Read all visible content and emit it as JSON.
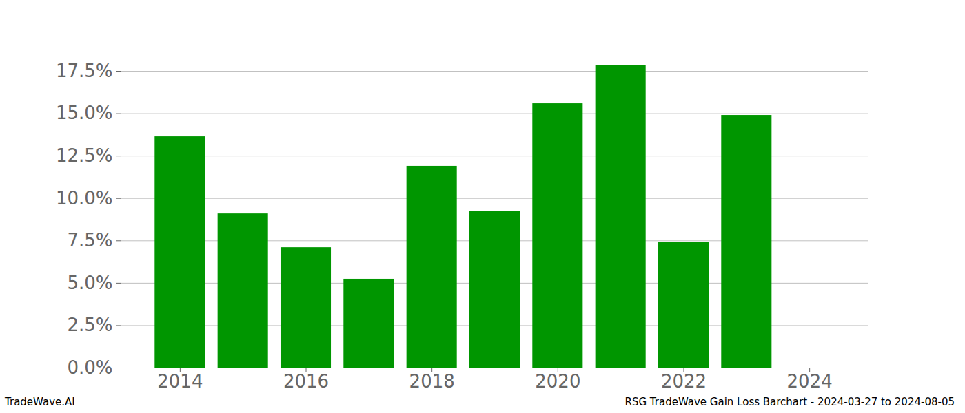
{
  "chart_data": {
    "type": "bar",
    "footer_left": "TradeWave.AI",
    "footer_right": "RSG TradeWave Gain Loss Barchart - 2024-03-27 to 2024-08-05",
    "x": [
      2014,
      2015,
      2016,
      2017,
      2018,
      2019,
      2020,
      2021,
      2022,
      2023,
      2024
    ],
    "values": [
      13.64,
      9.09,
      7.1,
      5.24,
      11.9,
      9.22,
      15.59,
      17.86,
      7.39,
      14.9,
      0
    ],
    "color": "#009600",
    "xlim": [
      2013.06,
      2024.94
    ],
    "xticks": [
      2014,
      2016,
      2018,
      2020,
      2022,
      2024
    ],
    "ylim": [
      0,
      18.76
    ],
    "yticks": [
      {
        "value": 0,
        "label": "0.0%"
      },
      {
        "value": 2.5,
        "label": "2.5%"
      },
      {
        "value": 5,
        "label": "5.0%"
      },
      {
        "value": 7.5,
        "label": "7.5%"
      },
      {
        "value": 10,
        "label": "10.0%"
      },
      {
        "value": 12.5,
        "label": "12.5%"
      },
      {
        "value": 15,
        "label": "15.0%"
      },
      {
        "value": 17.5,
        "label": "17.5%"
      }
    ],
    "grid": true
  }
}
